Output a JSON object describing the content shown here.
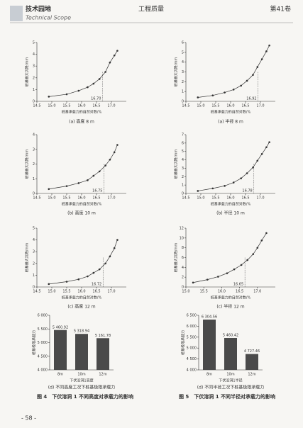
{
  "header": {
    "section": "技术园地",
    "section_en": "Technical Scope",
    "journal": "工程质量",
    "volume": "第41卷"
  },
  "figures": {
    "fig4": "图 4　下伏溶洞 1 不同高度对承载力的影响",
    "fig5": "图 5　下伏溶洞 1 不同半径对承载力的影响"
  },
  "page_number": "- 58 -",
  "chart_data": [
    {
      "type": "line",
      "subtitle": "(a) 高度 8 m",
      "xlabel": "桩基承载力的自然对数/%",
      "ylabel": "桩基最大沉降/mm",
      "color": "#333333",
      "x": [
        14.9,
        15.5,
        15.9,
        16.2,
        16.4,
        16.6,
        16.8,
        16.95,
        17.1,
        17.2
      ],
      "values": [
        0.4,
        0.6,
        0.9,
        1.2,
        1.5,
        1.9,
        2.5,
        3.3,
        3.9,
        4.3
      ],
      "marker": {
        "value": 16.7,
        "label": "16.70"
      },
      "xlim": [
        14.5,
        17.5
      ],
      "xticks": [
        14.5,
        {
          "value": 15,
          "label": "15.0"
        },
        15.5,
        {
          "value": 16,
          "label": "16.0"
        },
        16.5,
        {
          "value": 17,
          "label": "17.0"
        }
      ],
      "ylim": [
        0,
        5
      ],
      "yticks": [
        0,
        1,
        2,
        3,
        4,
        5
      ]
    },
    {
      "type": "line",
      "subtitle": "(a) 半径 8 m",
      "xlabel": "桩基承载力的自然对数/%",
      "ylabel": "桩基最大沉降/mm",
      "color": "#333333",
      "x": [
        14.9,
        15.4,
        15.8,
        16.1,
        16.35,
        16.55,
        16.75,
        16.9,
        17.05,
        17.2,
        17.3
      ],
      "values": [
        0.4,
        0.6,
        0.9,
        1.2,
        1.6,
        2.1,
        2.7,
        3.5,
        4.3,
        5.1,
        5.7
      ],
      "marker": {
        "value": 16.92,
        "label": "16.92"
      },
      "xlim": [
        14.5,
        17.5
      ],
      "xticks": [
        14.5,
        {
          "value": 15,
          "label": "15.0"
        },
        15.5,
        {
          "value": 16,
          "label": "16.0"
        },
        16.5,
        {
          "value": 17,
          "label": "17.0"
        }
      ],
      "ylim": [
        0,
        6
      ],
      "yticks": [
        0,
        1,
        2,
        3,
        4,
        5,
        6
      ]
    },
    {
      "type": "line",
      "subtitle": "(b) 高度 10 m",
      "xlabel": "桩基承载力的自然对数/%",
      "ylabel": "桩基最大沉降/mm",
      "color": "#333333",
      "x": [
        14.9,
        15.5,
        15.9,
        16.2,
        16.4,
        16.6,
        16.8,
        16.95,
        17.1,
        17.2
      ],
      "values": [
        0.3,
        0.5,
        0.7,
        0.9,
        1.2,
        1.5,
        1.9,
        2.3,
        2.8,
        3.3
      ],
      "marker": {
        "value": 16.75,
        "label": "16.75"
      },
      "xlim": [
        14.5,
        17.5
      ],
      "xticks": [
        14.5,
        {
          "value": 15,
          "label": "15.0"
        },
        15.5,
        {
          "value": 16,
          "label": "16.0"
        },
        16.5,
        {
          "value": 17,
          "label": "17.0"
        }
      ],
      "ylim": [
        0,
        4
      ],
      "yticks": [
        0,
        1,
        2,
        3,
        4
      ]
    },
    {
      "type": "line",
      "subtitle": "(b) 半径 10 m",
      "xlabel": "桩基承载力的自然对数/%",
      "ylabel": "桩基最大沉降/mm",
      "color": "#333333",
      "x": [
        14.9,
        15.4,
        15.8,
        16.1,
        16.35,
        16.55,
        16.75,
        16.9,
        17.05,
        17.2,
        17.3
      ],
      "values": [
        0.3,
        0.6,
        0.9,
        1.3,
        1.8,
        2.4,
        3.1,
        3.9,
        4.7,
        5.5,
        6.1
      ],
      "marker": {
        "value": 16.78,
        "label": "16.78"
      },
      "xlim": [
        14.5,
        17.5
      ],
      "xticks": [
        14.5,
        {
          "value": 15,
          "label": "15.0"
        },
        15.5,
        {
          "value": 16,
          "label": "16.0"
        },
        16.5,
        {
          "value": 17,
          "label": "17.0"
        }
      ],
      "ylim": [
        0,
        7
      ],
      "yticks": [
        0,
        1,
        2,
        3,
        4,
        5,
        6,
        7
      ]
    },
    {
      "type": "line",
      "subtitle": "(c) 高度 12 m",
      "xlabel": "桩基承载力的自然对数/%",
      "ylabel": "桩基最大沉降/mm",
      "color": "#333333",
      "x": [
        14.9,
        15.5,
        15.9,
        16.2,
        16.4,
        16.6,
        16.8,
        16.95,
        17.1,
        17.2
      ],
      "values": [
        0.25,
        0.45,
        0.65,
        0.9,
        1.2,
        1.5,
        2.0,
        2.6,
        3.3,
        4.0
      ],
      "marker": {
        "value": 16.72,
        "label": "16.72"
      },
      "xlim": [
        14.5,
        17.5
      ],
      "xticks": [
        14.5,
        {
          "value": 15,
          "label": "15.0"
        },
        15.5,
        {
          "value": 16,
          "label": "16.0"
        },
        16.5,
        {
          "value": 17,
          "label": "17.0"
        }
      ],
      "ylim": [
        0,
        5
      ],
      "yticks": [
        0,
        1,
        2,
        3,
        4,
        5
      ]
    },
    {
      "type": "line",
      "subtitle": "(c) 半径 12 m",
      "xlabel": "桩基承载力的自然对数/%",
      "ylabel": "桩基最大沉降/mm",
      "color": "#333333",
      "x": [
        15.2,
        15.6,
        15.9,
        16.15,
        16.35,
        16.55,
        16.72,
        16.88,
        17.0,
        17.12,
        17.25
      ],
      "values": [
        0.9,
        1.5,
        2.1,
        2.8,
        3.6,
        4.5,
        5.5,
        6.7,
        8.0,
        9.5,
        11.0
      ],
      "marker": {
        "value": 16.65,
        "label": "16.65"
      },
      "xlim": [
        15,
        17.5
      ],
      "xticks": [
        {
          "value": 15,
          "label": "15.0"
        },
        15.5,
        {
          "value": 16,
          "label": "16.0"
        },
        16.5,
        {
          "value": 17,
          "label": "17.0"
        }
      ],
      "ylim": [
        0,
        12
      ],
      "yticks": [
        0,
        2,
        4,
        6,
        8,
        10,
        12
      ]
    },
    {
      "type": "bar",
      "subtitle": "(d) 不同高度工况下桩基极限承载力",
      "xlabel": "下伏溶洞1高度",
      "ylabel": "桩基极限承载力",
      "color": "#4a4a4a",
      "categories": [
        "8m",
        "10m",
        "12m"
      ],
      "values": [
        5460.92,
        5318.94,
        5161.78
      ],
      "value_labels": [
        "5 460.92",
        "5 318.94",
        "5 161.78"
      ],
      "ylim": [
        4000,
        6000
      ],
      "yticks": [
        {
          "value": 4000,
          "label": "4 000"
        },
        {
          "value": 4500,
          "label": "4 500"
        },
        {
          "value": 5000,
          "label": "5 000"
        },
        {
          "value": 5500,
          "label": "5 500"
        },
        {
          "value": 6000,
          "label": "6 000"
        }
      ]
    },
    {
      "type": "bar",
      "subtitle": "(d) 不同半径工况下桩基极限承载力",
      "xlabel": "下伏溶洞1半径",
      "ylabel": "桩基极限承载力",
      "color": "#4a4a4a",
      "categories": [
        "8m",
        "10m",
        "12m"
      ],
      "values": [
        6304.56,
        5460.42,
        4727.46
      ],
      "value_labels": [
        "6 304.56",
        "5 460.42",
        "4 727.46"
      ],
      "ylim": [
        4000,
        6500
      ],
      "yticks": [
        {
          "value": 4000,
          "label": "4 000"
        },
        {
          "value": 4500,
          "label": "4 500"
        },
        {
          "value": 5000,
          "label": "5 000"
        },
        {
          "value": 5500,
          "label": "5 500"
        },
        {
          "value": 6000,
          "label": "6 000"
        },
        {
          "value": 6500,
          "label": "6 500"
        }
      ]
    }
  ]
}
